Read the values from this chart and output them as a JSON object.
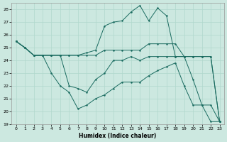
{
  "title": "",
  "xlabel": "Humidex (Indice chaleur)",
  "bg_color": "#cce8e0",
  "line_color": "#1a6b60",
  "grid_color": "#b0d8cc",
  "ylim": [
    19,
    28.5
  ],
  "xlim": [
    -0.5,
    23.5
  ],
  "yticks": [
    19,
    20,
    21,
    22,
    23,
    24,
    25,
    26,
    27,
    28
  ],
  "xticks": [
    0,
    1,
    2,
    3,
    4,
    5,
    6,
    7,
    8,
    9,
    10,
    11,
    12,
    13,
    14,
    15,
    16,
    17,
    18,
    19,
    20,
    21,
    22,
    23
  ],
  "line1_x": [
    0,
    1,
    2,
    3,
    4,
    5,
    6,
    7,
    8,
    9,
    10,
    11,
    12,
    13,
    14,
    15,
    16,
    17,
    18,
    19,
    20,
    21,
    22,
    23
  ],
  "line1_y": [
    25.5,
    25.0,
    24.4,
    24.4,
    24.4,
    24.4,
    24.4,
    24.4,
    24.4,
    24.4,
    24.8,
    24.8,
    24.8,
    24.8,
    24.8,
    25.3,
    25.3,
    25.3,
    25.3,
    24.3,
    24.3,
    24.3,
    24.3,
    19.2
  ],
  "line2_x": [
    0,
    1,
    2,
    3,
    4,
    5,
    6,
    7,
    8,
    9,
    10,
    11,
    12,
    13,
    14,
    15,
    16,
    17,
    18,
    19,
    20,
    21,
    22,
    23
  ],
  "line2_y": [
    25.5,
    25.0,
    24.4,
    24.4,
    24.4,
    24.4,
    24.4,
    24.4,
    24.6,
    24.8,
    26.7,
    27.0,
    27.1,
    27.8,
    28.3,
    27.1,
    28.1,
    27.5,
    24.3,
    24.3,
    22.5,
    20.5,
    19.2,
    19.2
  ],
  "line3_x": [
    0,
    1,
    2,
    3,
    4,
    5,
    6,
    7,
    8,
    9,
    10,
    11,
    12,
    13,
    14,
    15,
    16,
    17,
    18,
    19,
    20,
    21,
    22,
    23
  ],
  "line3_y": [
    25.5,
    25.0,
    24.4,
    24.4,
    24.4,
    24.4,
    22.0,
    21.8,
    21.5,
    22.5,
    23.0,
    24.0,
    24.0,
    24.3,
    24.0,
    24.3,
    24.3,
    24.3,
    24.3,
    24.3,
    24.3,
    24.3,
    24.3,
    19.2
  ],
  "line4_x": [
    0,
    1,
    2,
    3,
    4,
    5,
    6,
    7,
    8,
    9,
    10,
    11,
    12,
    13,
    14,
    15,
    16,
    17,
    18,
    19,
    20,
    21,
    22,
    23
  ],
  "line4_y": [
    25.5,
    25.0,
    24.4,
    24.4,
    23.0,
    22.0,
    21.5,
    20.2,
    20.5,
    21.0,
    21.3,
    21.8,
    22.3,
    22.3,
    22.3,
    22.8,
    23.2,
    23.5,
    23.8,
    22.0,
    20.5,
    20.5,
    20.5,
    19.2
  ]
}
